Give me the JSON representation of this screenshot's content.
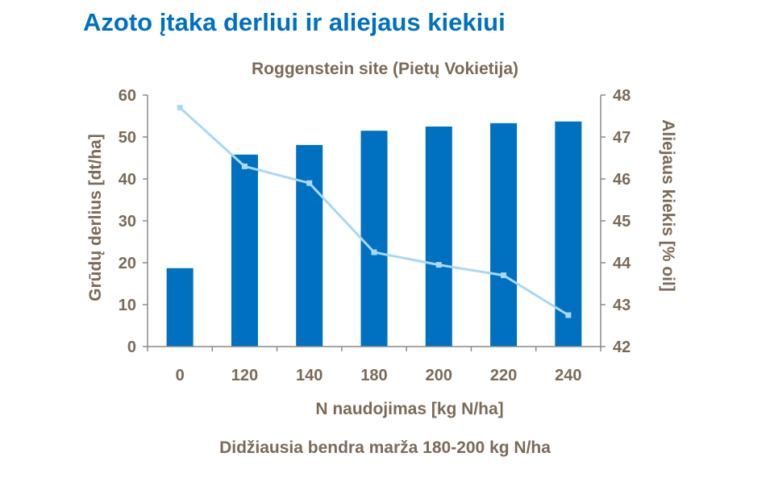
{
  "title": "Azoto įtaka derliui ir aliejaus kiekiui",
  "footnote": "Didžiausia bendra marža 180-200 kg N/ha",
  "chart_data": {
    "type": "bar+line",
    "title": "Roggenstein site (Pietų Vokietija)",
    "xlabel": "N naudojimas [kg N/ha]",
    "ylabel": "Grūdų derlius [dt/ha]",
    "y2label": "Aliejaus kiekis [% oil]",
    "categories": [
      "0",
      "120",
      "140",
      "180",
      "200",
      "220",
      "240"
    ],
    "ylim": [
      0,
      60
    ],
    "yticks": [
      "0",
      "10",
      "20",
      "30",
      "40",
      "50",
      "60"
    ],
    "y2lim": [
      42,
      48
    ],
    "y2ticks": [
      "42",
      "43",
      "44",
      "45",
      "46",
      "47",
      "48"
    ],
    "series": [
      {
        "type": "bar",
        "axis": "left",
        "color": "#0070c0",
        "values": [
          18.7,
          45.8,
          48.1,
          51.5,
          52.5,
          53.3,
          53.7
        ]
      },
      {
        "type": "line",
        "axis": "right",
        "color": "#a9d8f5",
        "values": [
          47.7,
          46.3,
          45.9,
          44.25,
          43.95,
          43.7,
          42.75
        ]
      }
    ],
    "grid": false
  }
}
